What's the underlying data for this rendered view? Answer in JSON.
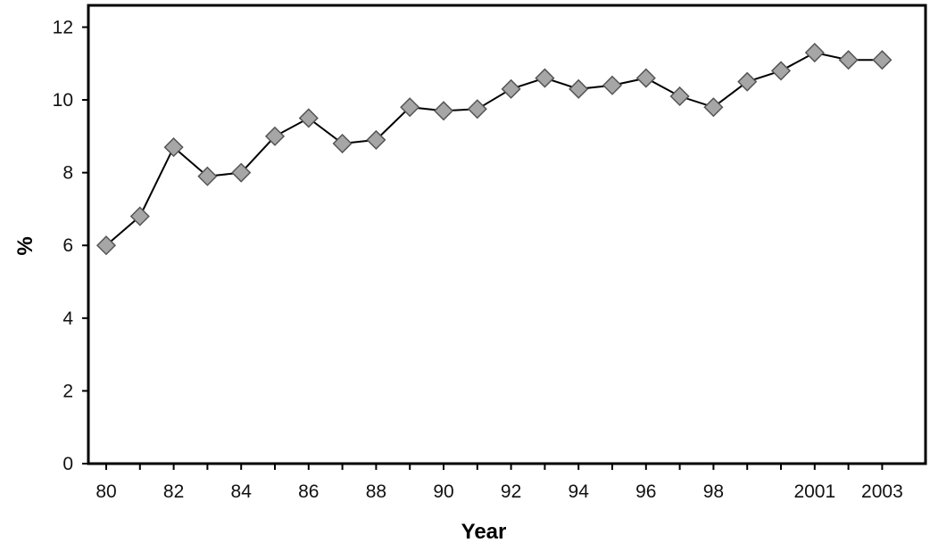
{
  "chart_data": {
    "type": "line",
    "title": "",
    "xlabel": "Year",
    "ylabel": "%",
    "x": [
      1980,
      1981,
      1982,
      1983,
      1984,
      1985,
      1986,
      1987,
      1988,
      1989,
      1990,
      1991,
      1992,
      1993,
      1994,
      1995,
      1996,
      1997,
      1998,
      1999,
      2000,
      2001,
      2002,
      2003
    ],
    "series": [
      {
        "values": [
          6.0,
          6.8,
          8.7,
          7.9,
          8.0,
          9.0,
          9.5,
          8.8,
          8.9,
          9.8,
          9.7,
          9.75,
          10.3,
          10.6,
          10.3,
          10.4,
          10.6,
          10.1,
          9.8,
          10.5,
          10.8,
          11.3,
          11.1,
          11.1
        ],
        "color": "#000000",
        "marker": "diamond",
        "marker_color": "#a6a6a6"
      }
    ],
    "ylim": [
      0,
      12
    ],
    "yticks": [
      "0",
      "2",
      "4",
      "6",
      "8",
      "10",
      "12"
    ],
    "xtick_labels": [
      {
        "year": 1980,
        "label": "80"
      },
      {
        "year": 1982,
        "label": "82"
      },
      {
        "year": 1984,
        "label": "84"
      },
      {
        "year": 1986,
        "label": "86"
      },
      {
        "year": 1988,
        "label": "88"
      },
      {
        "year": 1990,
        "label": "90"
      },
      {
        "year": 1992,
        "label": "92"
      },
      {
        "year": 1994,
        "label": "94"
      },
      {
        "year": 1996,
        "label": "96"
      },
      {
        "year": 1998,
        "label": "98"
      },
      {
        "year": 2001,
        "label": "2001"
      },
      {
        "year": 2003,
        "label": "2003"
      }
    ],
    "grid": false,
    "legend": "none"
  }
}
